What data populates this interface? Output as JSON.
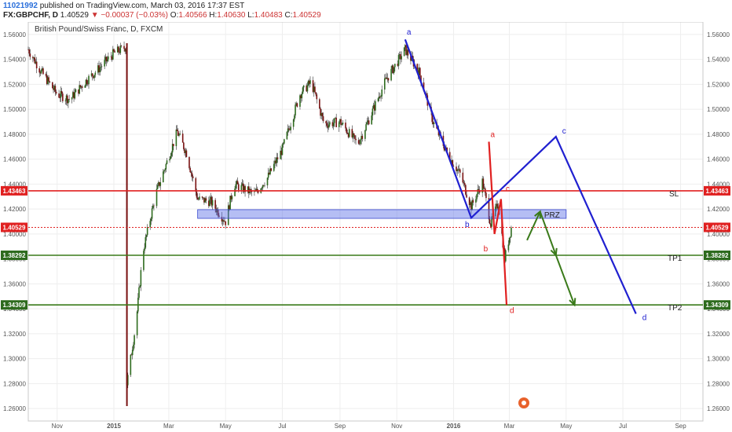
{
  "header": {
    "username": "11021992",
    "published": "published on TradingView.com, March 03, 2016 17:37 EST",
    "symbol": "FX:GBPCHF, D",
    "last": "1.40529",
    "change": "▼ −0.00037 (−0.03%)",
    "open_label": "O:",
    "open": "1.40566",
    "high_label": "H:",
    "high": "1.40630",
    "low_label": "L:",
    "low": "1.40483",
    "close_label": "C:",
    "close": "1.40529"
  },
  "chart_data": {
    "type": "candlestick",
    "title": "British Pound/Swiss Franc, D, FXCM",
    "x_ticks": [
      "Nov",
      "2015",
      "Mar",
      "May",
      "Jul",
      "Sep",
      "Nov",
      "2016",
      "Mar",
      "May",
      "Jul",
      "Sep"
    ],
    "x_range": [
      "2014-10-01",
      "2016-09-25"
    ],
    "y_range": [
      1.25,
      1.57
    ],
    "y_ticks": [
      "1.56000",
      "1.54000",
      "1.52000",
      "1.50000",
      "1.48000",
      "1.46000",
      "1.44000",
      "1.42000",
      "1.40000",
      "1.38000",
      "1.36000",
      "1.34000",
      "1.32000",
      "1.30000",
      "1.28000",
      "1.26000"
    ],
    "ohlc_approx": [
      {
        "date": "2014-10-01",
        "close": 1.548
      },
      {
        "date": "2014-10-15",
        "close": 1.53
      },
      {
        "date": "2014-11-01",
        "close": 1.512
      },
      {
        "date": "2014-11-15",
        "close": 1.508
      },
      {
        "date": "2014-12-01",
        "close": 1.522
      },
      {
        "date": "2014-12-15",
        "close": 1.532
      },
      {
        "date": "2015-01-01",
        "close": 1.545
      },
      {
        "date": "2015-01-14",
        "close": 1.55
      },
      {
        "date": "2015-01-15",
        "close": 1.28
      },
      {
        "date": "2015-01-25",
        "close": 1.33
      },
      {
        "date": "2015-02-01",
        "close": 1.385
      },
      {
        "date": "2015-02-15",
        "close": 1.432
      },
      {
        "date": "2015-03-01",
        "close": 1.462
      },
      {
        "date": "2015-03-10",
        "close": 1.482
      },
      {
        "date": "2015-03-20",
        "close": 1.465
      },
      {
        "date": "2015-04-01",
        "close": 1.428
      },
      {
        "date": "2015-04-15",
        "close": 1.426
      },
      {
        "date": "2015-05-01",
        "close": 1.41
      },
      {
        "date": "2015-05-10",
        "close": 1.44
      },
      {
        "date": "2015-06-01",
        "close": 1.432
      },
      {
        "date": "2015-06-15",
        "close": 1.445
      },
      {
        "date": "2015-07-01",
        "close": 1.468
      },
      {
        "date": "2015-07-20",
        "close": 1.512
      },
      {
        "date": "2015-08-01",
        "close": 1.522
      },
      {
        "date": "2015-08-15",
        "close": 1.488
      },
      {
        "date": "2015-09-01",
        "close": 1.49
      },
      {
        "date": "2015-09-20",
        "close": 1.472
      },
      {
        "date": "2015-10-01",
        "close": 1.49
      },
      {
        "date": "2015-10-20",
        "close": 1.523
      },
      {
        "date": "2015-11-10",
        "close": 1.548
      },
      {
        "date": "2015-11-25",
        "close": 1.53
      },
      {
        "date": "2015-12-10",
        "close": 1.49
      },
      {
        "date": "2015-12-25",
        "close": 1.465
      },
      {
        "date": "2016-01-08",
        "close": 1.448
      },
      {
        "date": "2016-01-20",
        "close": 1.422
      },
      {
        "date": "2016-02-01",
        "close": 1.442
      },
      {
        "date": "2016-02-10",
        "close": 1.408
      },
      {
        "date": "2016-02-18",
        "close": 1.425
      },
      {
        "date": "2016-02-25",
        "close": 1.38
      },
      {
        "date": "2016-03-03",
        "close": 1.405
      }
    ],
    "levels": [
      {
        "label": "SL",
        "value": 1.43463,
        "color": "#e02020"
      },
      {
        "label": "TP1",
        "value": 1.38292,
        "color": "#3a7a1a"
      },
      {
        "label": "TP2",
        "value": 1.34309,
        "color": "#3a7a1a"
      },
      {
        "label": "",
        "value": 1.40529,
        "color": "#e02020",
        "dashed": true
      }
    ],
    "prz": {
      "label": "PRZ",
      "from_date": "2015-04-01",
      "to_date": "2016-05-01",
      "high": 1.4195,
      "low": 1.4125
    },
    "harmonic_blue": {
      "points": [
        {
          "label": "a",
          "date": "2015-11-10",
          "value": 1.556
        },
        {
          "label": "b",
          "date": "2016-01-20",
          "value": 1.413
        },
        {
          "label": "c",
          "date": "2016-04-20",
          "value": 1.478
        },
        {
          "label": "d",
          "date": "2016-07-15",
          "value": 1.336
        }
      ],
      "color": "#2020d0"
    },
    "harmonic_red": {
      "points": [
        {
          "label": "a",
          "date": "2016-02-08",
          "value": 1.474
        },
        {
          "label": "b",
          "date": "2016-02-14",
          "value": 1.4
        },
        {
          "label": "c",
          "date": "2016-02-21",
          "value": 1.428
        },
        {
          "label": "d",
          "date": "2016-02-27",
          "value": 1.343
        }
      ],
      "color": "#e02020"
    },
    "projection_green": {
      "points": [
        {
          "date": "2016-03-20",
          "value": 1.395
        },
        {
          "date": "2016-04-03",
          "value": 1.418
        },
        {
          "date": "2016-04-20",
          "value": 1.383
        },
        {
          "date": "2016-05-10",
          "value": 1.343
        }
      ],
      "color": "#3a7a1a"
    },
    "price_badges": [
      "1.43463",
      "1.40529",
      "1.38292",
      "1.34309"
    ]
  }
}
